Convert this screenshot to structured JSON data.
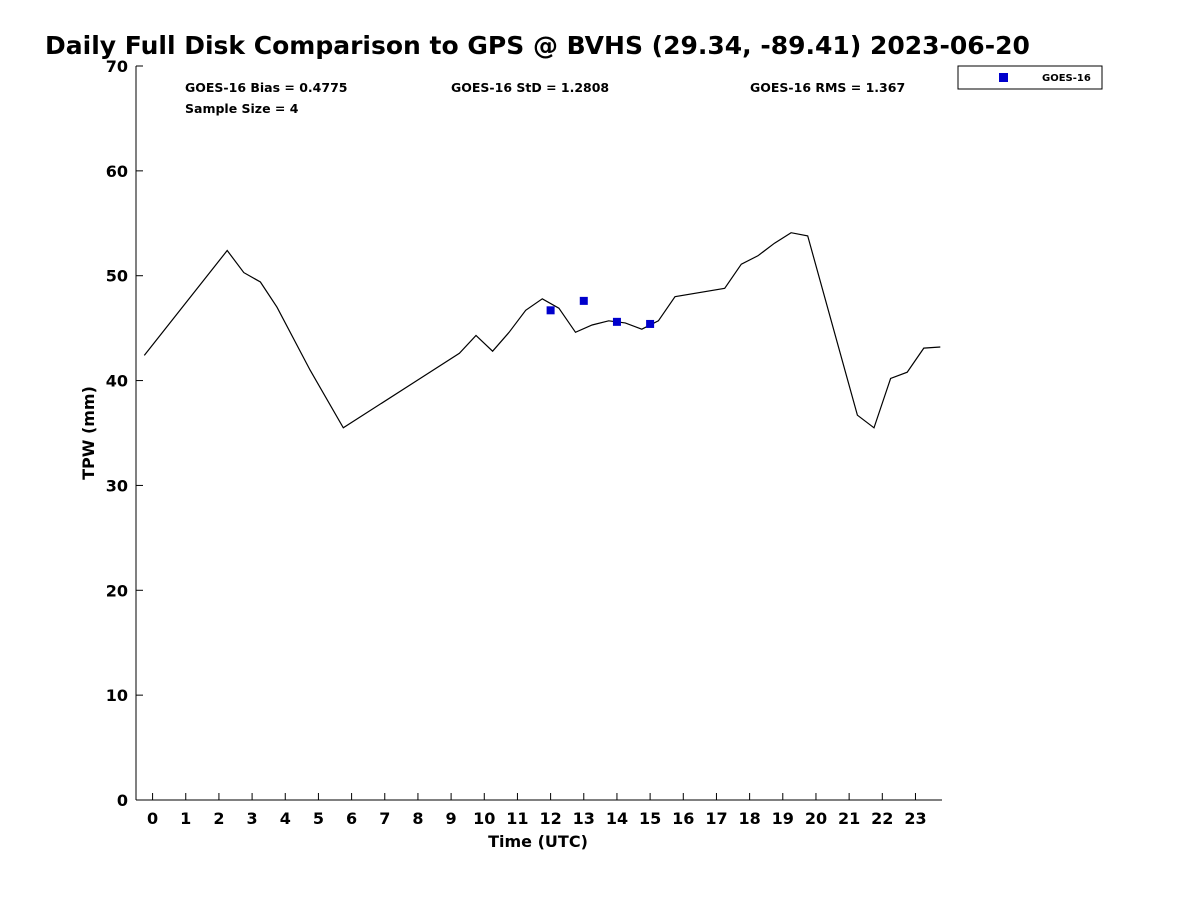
{
  "chart_data": {
    "type": "line",
    "title": "Daily Full Disk Comparison to GPS @ BVHS (29.34, -89.41) 2023-06-20",
    "xlabel": "Time (UTC)",
    "ylabel": "TPW (mm)",
    "xlim": [
      -0.5,
      23.8
    ],
    "ylim": [
      0,
      70
    ],
    "x_ticks": [
      0,
      1,
      2,
      3,
      4,
      5,
      6,
      7,
      8,
      9,
      10,
      11,
      12,
      13,
      14,
      15,
      16,
      17,
      18,
      19,
      20,
      21,
      22,
      23
    ],
    "y_ticks": [
      0,
      10,
      20,
      30,
      40,
      50,
      60,
      70
    ],
    "grid": false,
    "legend_position": "top-right",
    "stats": {
      "bias": "GOES-16 Bias = 0.4775",
      "std": "GOES-16 StD = 1.2808",
      "rms": "GOES-16 RMS = 1.367",
      "sample": "Sample Size = 4"
    },
    "series": [
      {
        "kind": "line",
        "color": "#000000",
        "points": [
          [
            -0.25,
            42.4
          ],
          [
            2.25,
            52.4
          ],
          [
            2.75,
            50.3
          ],
          [
            3.25,
            49.4
          ],
          [
            3.75,
            47.0
          ],
          [
            4.75,
            41.0
          ],
          [
            5.75,
            35.5
          ],
          [
            9.25,
            42.6
          ],
          [
            9.75,
            44.3
          ],
          [
            10.25,
            42.8
          ],
          [
            10.75,
            44.6
          ],
          [
            11.25,
            46.7
          ],
          [
            11.75,
            47.8
          ],
          [
            12.25,
            46.9
          ],
          [
            12.75,
            44.6
          ],
          [
            13.25,
            45.3
          ],
          [
            13.75,
            45.7
          ],
          [
            14.25,
            45.5
          ],
          [
            14.75,
            44.9
          ],
          [
            15.25,
            45.7
          ],
          [
            15.75,
            48.0
          ],
          [
            17.25,
            48.8
          ],
          [
            17.75,
            51.1
          ],
          [
            18.25,
            51.9
          ],
          [
            18.75,
            53.1
          ],
          [
            19.25,
            54.1
          ],
          [
            19.75,
            53.8
          ],
          [
            21.25,
            36.7
          ],
          [
            21.75,
            35.5
          ],
          [
            22.25,
            40.2
          ],
          [
            22.75,
            40.8
          ],
          [
            23.25,
            43.1
          ],
          [
            23.75,
            43.2
          ]
        ]
      },
      {
        "kind": "scatter",
        "name": "GOES-16",
        "color": "#0000cc",
        "points": [
          [
            12.0,
            46.7
          ],
          [
            13.0,
            47.6
          ],
          [
            14.0,
            45.6
          ],
          [
            15.0,
            45.4
          ]
        ]
      }
    ]
  }
}
